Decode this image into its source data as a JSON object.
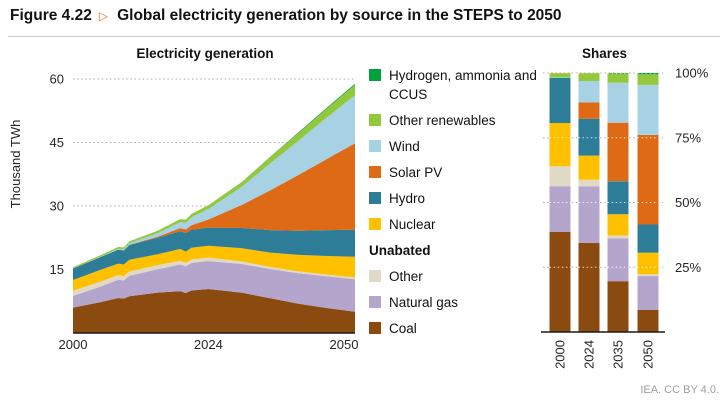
{
  "header": {
    "figure_label": "Figure 4.22",
    "arrow_glyph": "▷",
    "arrow_color": "#E8731A",
    "title": "Global electricity generation by source in the STEPS to 2050"
  },
  "footer": {
    "attribution": "IEA. CC BY 4.0."
  },
  "legend": {
    "items": [
      {
        "key": "hydrogen-ammonia-ccus",
        "label": "Hydrogen, ammonia and CCUS",
        "color": "#00A23E"
      },
      {
        "key": "other-renewables",
        "label": "Other renewables",
        "color": "#93C83D"
      },
      {
        "key": "wind",
        "label": "Wind",
        "color": "#A6D2E4"
      },
      {
        "key": "solar-pv",
        "label": "Solar PV",
        "color": "#DE6A15"
      },
      {
        "key": "hydro",
        "label": "Hydro",
        "color": "#2E7D98"
      },
      {
        "key": "nuclear",
        "label": "Nuclear",
        "color": "#FFC000"
      },
      {
        "key": null,
        "label": "Unabated",
        "bold": true
      },
      {
        "key": "other",
        "label": "Other",
        "color": "#DFD9C5"
      },
      {
        "key": "natural-gas",
        "label": "Natural gas",
        "color": "#B4A5CC"
      },
      {
        "key": "coal",
        "label": "Coal",
        "color": "#8B4A10"
      }
    ]
  },
  "chart_data": [
    {
      "type": "area",
      "stacked": true,
      "title": "Electricity generation",
      "ylabel": "Thousand TWh",
      "ylim": [
        0,
        60
      ],
      "yticks": [
        15,
        30,
        45,
        60
      ],
      "xticks": [
        2000,
        2024,
        2050
      ],
      "grid": "horizontal-dotted",
      "x": [
        2000,
        2005,
        2008,
        2009,
        2010,
        2015,
        2019,
        2020,
        2021,
        2024,
        2030,
        2035,
        2040,
        2045,
        2050
      ],
      "series": [
        {
          "key": "coal",
          "name": "Coal",
          "values": [
            5.99,
            7.33,
            8.27,
            8.12,
            8.67,
            9.54,
            9.9,
            9.42,
            10.04,
            10.4,
            9.5,
            8.2,
            6.9,
            5.9,
            5.0
          ]
        },
        {
          "key": "natural-gas",
          "name": "Natural gas",
          "values": [
            2.75,
            3.72,
            4.3,
            4.3,
            4.85,
            5.54,
            6.3,
            6.33,
            6.52,
            6.6,
            6.8,
            6.9,
            7.2,
            7.5,
            7.7
          ]
        },
        {
          "key": "other",
          "name": "Other",
          "values": [
            1.2,
            1.15,
            1.1,
            1.05,
            1.0,
            0.95,
            0.85,
            0.8,
            0.8,
            0.8,
            0.6,
            0.5,
            0.45,
            0.4,
            0.4
          ]
        },
        {
          "key": "nuclear",
          "name": "Nuclear",
          "values": [
            2.59,
            2.77,
            2.73,
            2.7,
            2.76,
            2.57,
            2.8,
            2.69,
            2.8,
            2.8,
            3.1,
            3.4,
            3.9,
            4.4,
            4.9
          ]
        },
        {
          "key": "hydro",
          "name": "Hydro",
          "values": [
            2.7,
            3.02,
            3.29,
            3.33,
            3.53,
            3.89,
            4.22,
            4.35,
            4.25,
            4.3,
            4.8,
            5.3,
            5.7,
            6.1,
            6.4
          ]
        },
        {
          "key": "solar-pv",
          "name": "Solar PV",
          "values": [
            0.0,
            0.0,
            0.01,
            0.02,
            0.03,
            0.25,
            0.7,
            0.85,
            1.05,
            1.9,
            5.5,
            9.4,
            13.2,
            16.8,
            20.4
          ]
        },
        {
          "key": "wind",
          "name": "Wind",
          "values": [
            0.03,
            0.1,
            0.22,
            0.28,
            0.34,
            0.83,
            1.42,
            1.6,
            1.85,
            2.5,
            4.3,
            6.4,
            8.1,
            9.8,
            11.4
          ]
        },
        {
          "key": "other-renewables",
          "name": "Other renewables",
          "values": [
            0.25,
            0.35,
            0.4,
            0.42,
            0.45,
            0.6,
            0.72,
            0.75,
            0.8,
            0.9,
            1.1,
            1.5,
            1.8,
            2.1,
            2.4
          ]
        },
        {
          "key": "hydrogen-ammonia-ccus",
          "name": "Hydrogen, ammonia and CCUS",
          "values": [
            0,
            0,
            0,
            0,
            0,
            0,
            0,
            0,
            0,
            0,
            0.03,
            0.08,
            0.15,
            0.22,
            0.3
          ]
        }
      ]
    },
    {
      "type": "bar",
      "stacked": true,
      "unit": "percent",
      "title": "Shares",
      "ylim": [
        0,
        100
      ],
      "yticks": [
        25,
        50,
        75,
        100
      ],
      "ytick_labels": [
        "25%",
        "50%",
        "75%",
        "100%"
      ],
      "grid": "horizontal-dotted",
      "categories": [
        "2000",
        "2024",
        "2035",
        "2050"
      ],
      "series": [
        {
          "key": "coal",
          "name": "Coal",
          "values": [
            38.6,
            34.4,
            19.6,
            8.5
          ]
        },
        {
          "key": "natural-gas",
          "name": "Natural gas",
          "values": [
            17.7,
            21.8,
            16.5,
            13.1
          ]
        },
        {
          "key": "other",
          "name": "Other",
          "values": [
            7.7,
            2.6,
            1.2,
            0.7
          ]
        },
        {
          "key": "nuclear",
          "name": "Nuclear",
          "values": [
            16.7,
            9.3,
            8.2,
            8.3
          ]
        },
        {
          "key": "hydro",
          "name": "Hydro",
          "values": [
            17.4,
            14.2,
            12.7,
            10.9
          ]
        },
        {
          "key": "solar-pv",
          "name": "Solar PV",
          "values": [
            0.0,
            6.3,
            22.6,
            34.6
          ]
        },
        {
          "key": "wind",
          "name": "Wind",
          "values": [
            0.2,
            8.3,
            15.4,
            19.3
          ]
        },
        {
          "key": "other-renewables",
          "name": "Other renewables",
          "values": [
            1.7,
            3.1,
            3.6,
            4.1
          ]
        },
        {
          "key": "hydrogen-ammonia-ccus",
          "name": "Hydrogen, ammonia and CCUS",
          "values": [
            0.0,
            0.0,
            0.2,
            0.5
          ]
        }
      ]
    }
  ]
}
